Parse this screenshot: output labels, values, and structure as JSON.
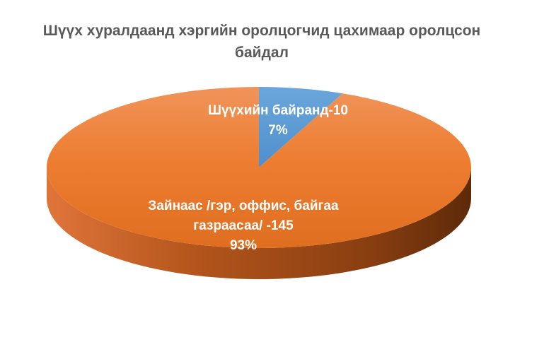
{
  "colors": {
    "slice_1": "#5B9BD5",
    "slice_2": "#ED7D31",
    "title": "#595959",
    "label": "#FFFFFF"
  },
  "chart_data": {
    "type": "pie",
    "style": "3d",
    "title": "Шүүх хуралдаанд хэргийн оролцогчид цахимаар оролцсон байдал",
    "categories": [
      "Шүүхийн байранд",
      "Зайнаас /гэр, оффис, байгаа газраасаа/"
    ],
    "values": [
      10,
      145
    ],
    "percent_labels": [
      "7%",
      "93%"
    ],
    "data_labels": [
      {
        "lines": [
          "Шүүхийн байранд-10",
          "7%"
        ]
      },
      {
        "lines": [
          "Зайнаас /гэр, оффис, байгаа",
          "газраасаа/ -145",
          "93%"
        ]
      }
    ],
    "legend": "none"
  }
}
